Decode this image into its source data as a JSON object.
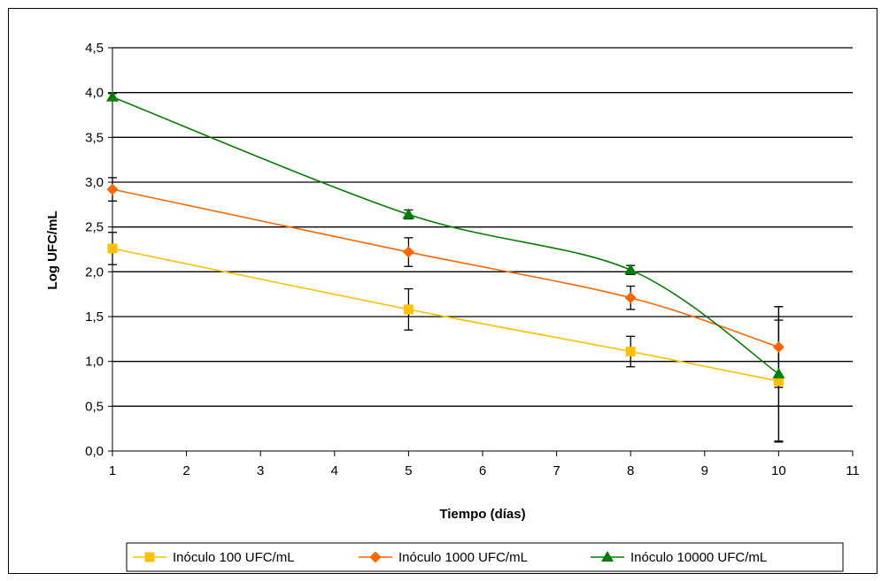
{
  "chart_data": {
    "type": "line",
    "xlabel": "Tiempo (días)",
    "ylabel": "Log UFC/mL",
    "xlim": [
      1,
      11
    ],
    "ylim": [
      0,
      4.5
    ],
    "x_ticks": [
      "1",
      "2",
      "3",
      "4",
      "5",
      "6",
      "7",
      "8",
      "9",
      "10",
      "11"
    ],
    "y_ticks": [
      "0,0",
      "0,5",
      "1,0",
      "1,5",
      "2,0",
      "2,5",
      "3,0",
      "3,5",
      "4,0",
      "4,5"
    ],
    "grid": "horizontal",
    "legend_position": "bottom",
    "series": [
      {
        "name": "Inóculo 100 UFC/mL",
        "color": "#FFC000",
        "marker": "square",
        "x": [
          1,
          5,
          8,
          10
        ],
        "y": [
          2.26,
          1.58,
          1.11,
          0.78
        ],
        "err": [
          0.18,
          0.23,
          0.17,
          0.68
        ]
      },
      {
        "name": "Inóculo 1000 UFC/mL",
        "color": "#FF6600",
        "marker": "diamond",
        "x": [
          1,
          5,
          8,
          10
        ],
        "y": [
          2.92,
          2.22,
          1.71,
          1.16
        ],
        "err": [
          0.13,
          0.16,
          0.13,
          0.45
        ]
      },
      {
        "name": "Inóculo 10000 UFC/mL",
        "color": "#008000",
        "marker": "triangle",
        "x": [
          1,
          5,
          8,
          10
        ],
        "y": [
          3.95,
          2.64,
          2.02,
          0.86
        ],
        "err": [
          0.04,
          0.05,
          0.05,
          0.75
        ]
      }
    ]
  }
}
